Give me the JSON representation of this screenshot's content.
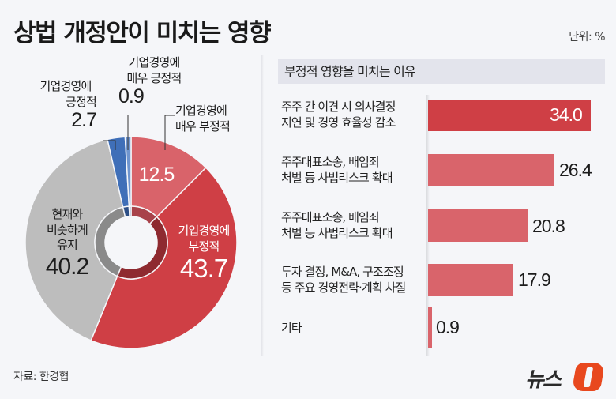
{
  "title": "상법 개정안이 미치는 영향",
  "unit": "단위: %",
  "source": "자료: 한경협",
  "logo": {
    "text": "뉴스",
    "mark": "1",
    "mark_color": "#e8481e"
  },
  "colors": {
    "very_negative": "#d9636a",
    "negative": "#cf3f45",
    "neutral": "#bdbdbd",
    "positive": "#3f6fb8",
    "very_positive": "#6f95cf",
    "bar_top": "#cf3f45",
    "bar": "#d9646b",
    "panel_head_bg": "#e3e4ec",
    "background": "#f5f6f9"
  },
  "donut": {
    "labels": {
      "very_positive": {
        "t1": "기업경영에",
        "t2": "매우 긍정적",
        "v": "0.9"
      },
      "positive": {
        "t1": "기업경영에",
        "t2": "긍정적",
        "v": "2.7"
      },
      "very_negative": {
        "t1": "기업경영에",
        "t2": "매우 부정적",
        "v": "12.5"
      },
      "negative": {
        "t1": "기업경영에",
        "t2": "부정적",
        "v": "43.7"
      },
      "neutral": {
        "t1": "현재와",
        "t2": "비슷하게",
        "t3": "유지",
        "v": "40.2"
      }
    }
  },
  "panel": {
    "header": "부정적 영향을 미치는 이유",
    "rows": [
      {
        "label": "주주 간 이견 시 의사결정\n지연 및 경영 효율성 감소",
        "value": "34.0"
      },
      {
        "label": "주주대표소송, 배임죄\n처벌 등 사법리스크 확대",
        "value": "26.4"
      },
      {
        "label": "주주대표소송, 배임죄\n처벌 등 사법리스크 확대",
        "value": "20.8"
      },
      {
        "label": "투자 결정, M&A, 구조조정\n등 주요 경영전략·계획 차질",
        "value": "17.9"
      },
      {
        "label": "기타",
        "value": "0.9"
      }
    ]
  },
  "chart_data": [
    {
      "type": "pie",
      "title": "상법 개정안이 미치는 영향",
      "unit": "%",
      "categories": [
        "기업경영에 매우 부정적",
        "기업경영에 부정적",
        "현재와 비슷하게 유지",
        "기업경영에 긍정적",
        "기업경영에 매우 긍정적"
      ],
      "values": [
        12.5,
        43.7,
        40.2,
        2.7,
        0.9
      ],
      "donut": true
    },
    {
      "type": "bar",
      "orientation": "horizontal",
      "title": "부정적 영향을 미치는 이유",
      "unit": "%",
      "categories": [
        "주주 간 이견 시 의사결정 지연 및 경영 효율성 감소",
        "주주대표소송, 배임죄 처벌 등 사법리스크 확대",
        "주주대표소송, 배임죄 처벌 등 사법리스크 확대",
        "투자 결정, M&A, 구조조정 등 주요 경영전략·계획 차질",
        "기타"
      ],
      "values": [
        34.0,
        26.4,
        20.8,
        17.9,
        0.9
      ]
    }
  ]
}
